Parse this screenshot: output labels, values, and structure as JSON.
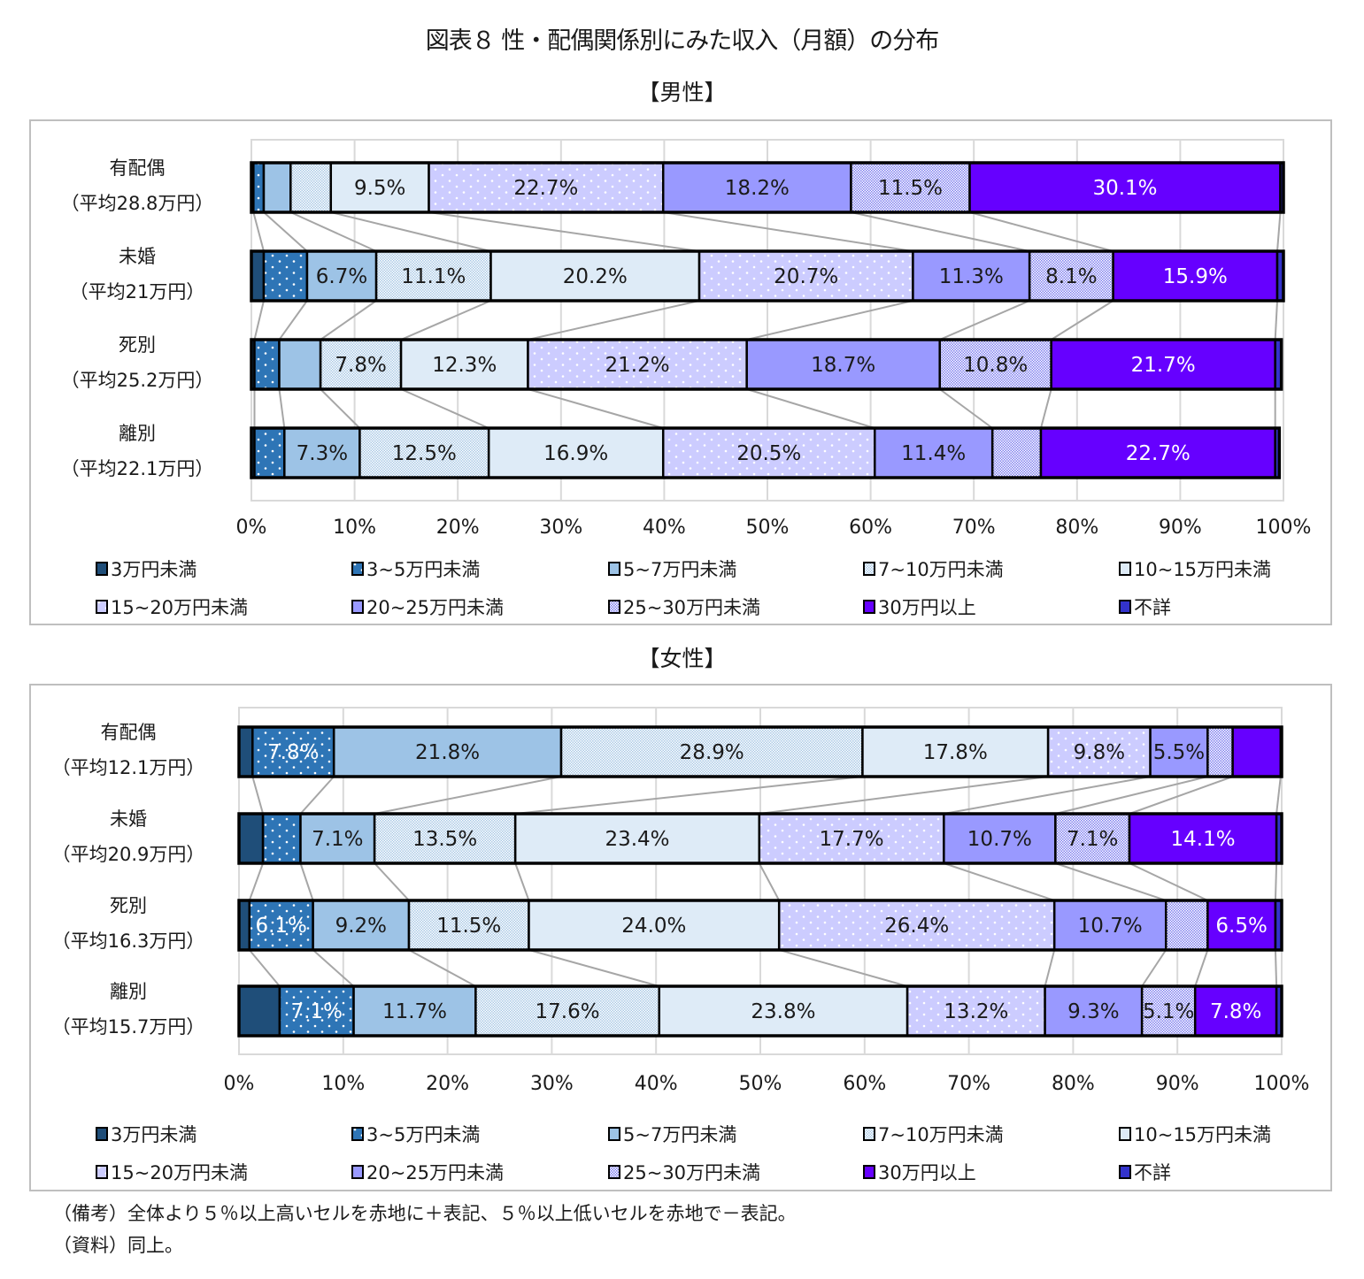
{
  "title": "図表８ 性・配偶関係別にみた収入（月額）の分布",
  "notes": [
    "（備考）全体より５％以上高いセルを赤地に＋表記、５％以上低いセルを赤地で－表記。",
    "（資料）同上。"
  ],
  "chart_data": [
    {
      "type": "bar",
      "orientation": "horizontal-stacked-100",
      "title": "【男性】",
      "xlabel": "",
      "ylabel": "",
      "xlim": [
        0,
        100
      ],
      "grid": true,
      "legend_position": "bottom",
      "tick_labels": [
        "0%",
        "10%",
        "20%",
        "30%",
        "40%",
        "50%",
        "60%",
        "70%",
        "80%",
        "90%",
        "100%"
      ],
      "categories": [
        {
          "name": "有配偶",
          "sub": "（平均28.8万円）"
        },
        {
          "name": "未婚",
          "sub": "（平均21万円）"
        },
        {
          "name": "死別",
          "sub": "（平均25.2万円）"
        },
        {
          "name": "離別",
          "sub": "（平均22.1万円）"
        }
      ],
      "series": [
        {
          "name": "3万円未満",
          "color": "#1F4E79",
          "pattern": "solid",
          "label_color": "#1a1a1a",
          "values": [
            0.2,
            1.2,
            0.3,
            0.3
          ],
          "labels": [
            "",
            "",
            "",
            ""
          ]
        },
        {
          "name": "3~5万円未満",
          "color": "#2E75B6",
          "pattern": "dots",
          "label_color": "#ffffff",
          "values": [
            1.0,
            4.2,
            2.4,
            2.9
          ],
          "labels": [
            "",
            "",
            "",
            ""
          ]
        },
        {
          "name": "5~7万円未満",
          "color": "#9DC3E6",
          "pattern": "solid",
          "label_color": "#1a1a1a",
          "values": [
            2.6,
            6.7,
            4.0,
            7.3
          ],
          "labels": [
            "",
            "6.7%",
            "",
            "7.3%"
          ]
        },
        {
          "name": "7~10万円未満",
          "color": "#A9C8E6",
          "pattern": "checker",
          "label_color": "#1a1a1a",
          "values": [
            3.9,
            11.1,
            7.8,
            12.5
          ],
          "labels": [
            "",
            "11.1%",
            "7.8%",
            "12.5%"
          ]
        },
        {
          "name": "10~15万円未満",
          "color": "#DEEBF7",
          "pattern": "solid",
          "label_color": "#1a1a1a",
          "values": [
            9.5,
            20.2,
            12.3,
            16.9
          ],
          "labels": [
            "9.5%",
            "20.2%",
            "12.3%",
            "16.9%"
          ]
        },
        {
          "name": "15~20万円未満",
          "color": "#CCCCFF",
          "pattern": "dots",
          "label_color": "#1a1a1a",
          "values": [
            22.7,
            20.7,
            21.2,
            20.5
          ],
          "labels": [
            "22.7%",
            "20.7%",
            "21.2%",
            "20.5%"
          ]
        },
        {
          "name": "20~25万円未満",
          "color": "#9999FF",
          "pattern": "solid",
          "label_color": "#1a1a1a",
          "values": [
            18.2,
            11.3,
            18.7,
            11.4
          ],
          "labels": [
            "18.2%",
            "11.3%",
            "18.7%",
            "11.4%"
          ]
        },
        {
          "name": "25~30万円未満",
          "color": "#7F7FEF",
          "pattern": "checker",
          "label_color": "#1a1a1a",
          "values": [
            11.5,
            8.1,
            10.8,
            4.7
          ],
          "labels": [
            "11.5%",
            "8.1%",
            "10.8%",
            ""
          ]
        },
        {
          "name": "30万円以上",
          "color": "#6600FF",
          "pattern": "solid",
          "label_color": "#ffffff",
          "values": [
            30.1,
            15.9,
            21.7,
            22.7
          ],
          "labels": [
            "30.1%",
            "15.9%",
            "21.7%",
            "22.7%"
          ]
        },
        {
          "name": "不詳",
          "color": "#3333CC",
          "pattern": "solid",
          "label_color": "#ffffff",
          "values": [
            0.3,
            0.6,
            0.6,
            0.4
          ],
          "labels": [
            "",
            "",
            "",
            ""
          ]
        }
      ]
    },
    {
      "type": "bar",
      "orientation": "horizontal-stacked-100",
      "title": "【女性】",
      "xlabel": "",
      "ylabel": "",
      "xlim": [
        0,
        100
      ],
      "grid": true,
      "legend_position": "bottom",
      "tick_labels": [
        "0%",
        "10%",
        "20%",
        "30%",
        "40%",
        "50%",
        "60%",
        "70%",
        "80%",
        "90%",
        "100%"
      ],
      "categories": [
        {
          "name": "有配偶",
          "sub": "（平均12.1万円）"
        },
        {
          "name": "未婚",
          "sub": "（平均20.9万円）"
        },
        {
          "name": "死別",
          "sub": "（平均16.3万円）"
        },
        {
          "name": "離別",
          "sub": "（平均15.7万円）"
        }
      ],
      "series": [
        {
          "name": "3万円未満",
          "color": "#1F4E79",
          "pattern": "solid",
          "label_color": "#1a1a1a",
          "values": [
            1.3,
            2.3,
            1.0,
            3.9
          ],
          "labels": [
            "",
            "",
            "",
            ""
          ]
        },
        {
          "name": "3~5万円未満",
          "color": "#2E75B6",
          "pattern": "dots",
          "label_color": "#ffffff",
          "values": [
            7.8,
            3.6,
            6.1,
            7.1
          ],
          "labels": [
            "7.8%",
            "",
            "6.1%",
            "7.1%"
          ]
        },
        {
          "name": "5~7万円未満",
          "color": "#9DC3E6",
          "pattern": "solid",
          "label_color": "#1a1a1a",
          "values": [
            21.8,
            7.1,
            9.2,
            11.7
          ],
          "labels": [
            "21.8%",
            "7.1%",
            "9.2%",
            "11.7%"
          ]
        },
        {
          "name": "7~10万円未満",
          "color": "#A9C8E6",
          "pattern": "checker",
          "label_color": "#1a1a1a",
          "values": [
            28.9,
            13.5,
            11.5,
            17.6
          ],
          "labels": [
            "28.9%",
            "13.5%",
            "11.5%",
            "17.6%"
          ]
        },
        {
          "name": "10~15万円未満",
          "color": "#DEEBF7",
          "pattern": "solid",
          "label_color": "#1a1a1a",
          "values": [
            17.8,
            23.4,
            24.0,
            23.8
          ],
          "labels": [
            "17.8%",
            "23.4%",
            "24.0%",
            "23.8%"
          ]
        },
        {
          "name": "15~20万円未満",
          "color": "#CCCCFF",
          "pattern": "dots",
          "label_color": "#1a1a1a",
          "values": [
            9.8,
            17.7,
            26.4,
            13.2
          ],
          "labels": [
            "9.8%",
            "17.7%",
            "26.4%",
            "13.2%"
          ]
        },
        {
          "name": "20~25万円未満",
          "color": "#9999FF",
          "pattern": "solid",
          "label_color": "#1a1a1a",
          "values": [
            5.5,
            10.7,
            10.7,
            9.3
          ],
          "labels": [
            "5.5%",
            "10.7%",
            "10.7%",
            "9.3%"
          ]
        },
        {
          "name": "25~30万円未満",
          "color": "#7F7FEF",
          "pattern": "checker",
          "label_color": "#1a1a1a",
          "values": [
            2.4,
            7.1,
            4.0,
            5.1
          ],
          "labels": [
            "",
            "7.1%",
            "",
            "5.1%"
          ]
        },
        {
          "name": "30万円以上",
          "color": "#6600FF",
          "pattern": "solid",
          "label_color": "#ffffff",
          "values": [
            4.6,
            14.1,
            6.5,
            7.8
          ],
          "labels": [
            "",
            "14.1%",
            "6.5%",
            "7.8%"
          ]
        },
        {
          "name": "不詳",
          "color": "#3333CC",
          "pattern": "solid",
          "label_color": "#ffffff",
          "values": [
            0.1,
            0.5,
            0.6,
            0.5
          ],
          "labels": [
            "",
            "",
            "",
            ""
          ]
        }
      ]
    }
  ]
}
